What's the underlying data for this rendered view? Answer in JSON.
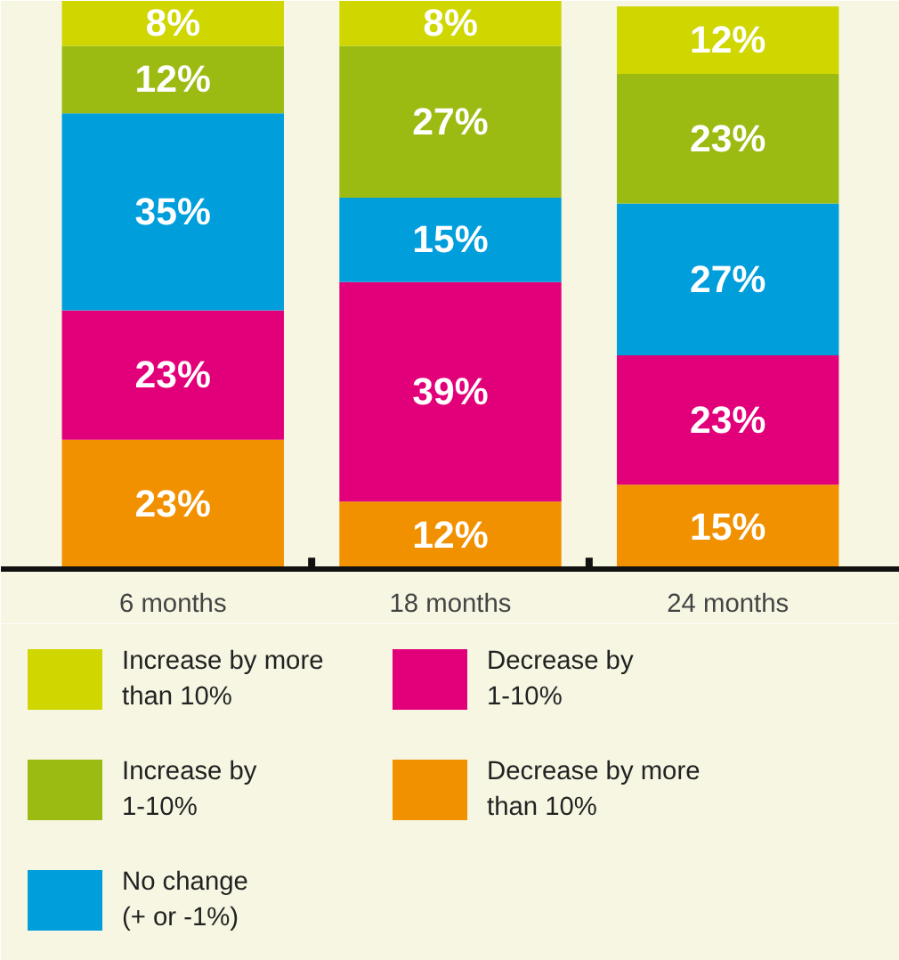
{
  "chart_data": {
    "type": "bar",
    "stacked": true,
    "legend": "bottom",
    "grid": false,
    "categories": [
      "6 months",
      "18 months",
      "24 months"
    ],
    "series": [
      {
        "name": "Decrease by more\nthan 10%",
        "color": "#f29100",
        "values": [
          23,
          12,
          15
        ],
        "value_labels": [
          "23%",
          "12%",
          "15%"
        ]
      },
      {
        "name": "Decrease by\n1-10%",
        "color": "#e2007a",
        "values": [
          23,
          39,
          23
        ],
        "value_labels": [
          "23%",
          "39%",
          "23%"
        ]
      },
      {
        "name": "No change\n(+ or -1%)",
        "color": "#009edb",
        "values": [
          35,
          15,
          27
        ],
        "value_labels": [
          "35%",
          "15%",
          "27%"
        ]
      },
      {
        "name": "Increase by\n1-10%",
        "color": "#9bbb13",
        "values": [
          12,
          27,
          23
        ],
        "value_labels": [
          "12%",
          "27%",
          "23%"
        ]
      },
      {
        "name": "Increase by more\nthan 10%",
        "color": "#cfd600",
        "values": [
          8,
          8,
          12
        ],
        "value_labels": [
          "8%",
          "8%",
          "12%"
        ]
      }
    ]
  }
}
